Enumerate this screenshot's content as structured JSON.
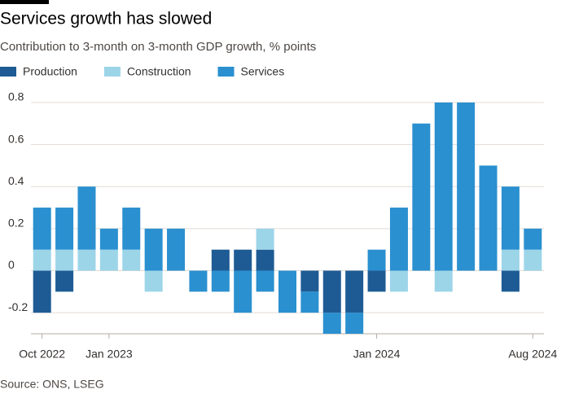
{
  "chart_data": {
    "type": "bar",
    "stacked": true,
    "title": "Services growth has slowed",
    "subtitle": "Contribution to 3-month on 3-month GDP growth, % points",
    "source": "Source: ONS, LSEG",
    "categories": [
      "Oct 2022",
      null,
      null,
      "Jan 2023",
      null,
      null,
      null,
      null,
      null,
      null,
      null,
      null,
      null,
      null,
      null,
      "Jan 2024",
      null,
      null,
      null,
      null,
      null,
      null,
      "Aug 2024"
    ],
    "series": [
      {
        "name": "Production",
        "color": "#1e5b94",
        "values": [
          -0.2,
          -0.1,
          0,
          0,
          0,
          0,
          0,
          0,
          0.1,
          0.1,
          0.1,
          0,
          -0.1,
          -0.2,
          -0.2,
          -0.1,
          0,
          0,
          0,
          0,
          0,
          -0.1,
          0
        ]
      },
      {
        "name": "Construction",
        "color": "#9dd5e8",
        "values": [
          0.1,
          0.1,
          0.1,
          0.1,
          0.1,
          -0.1,
          0,
          0,
          0,
          0,
          0.1,
          0,
          0,
          0,
          0,
          0,
          -0.1,
          0,
          -0.1,
          0,
          0,
          0.1,
          0.1
        ]
      },
      {
        "name": "Services",
        "color": "#2a90d0",
        "values": [
          0.2,
          0.2,
          0.3,
          0.1,
          0.2,
          0.2,
          0.2,
          -0.1,
          -0.1,
          -0.2,
          -0.1,
          -0.2,
          -0.1,
          -0.1,
          -0.1,
          0.1,
          0.3,
          0.7,
          0.8,
          0.8,
          0.5,
          0.3,
          0.1
        ]
      }
    ],
    "ylim": [
      -0.3,
      0.85
    ],
    "yticks": [
      -0.2,
      0,
      0.2,
      0.4,
      0.6,
      0.8
    ],
    "grid": true
  }
}
